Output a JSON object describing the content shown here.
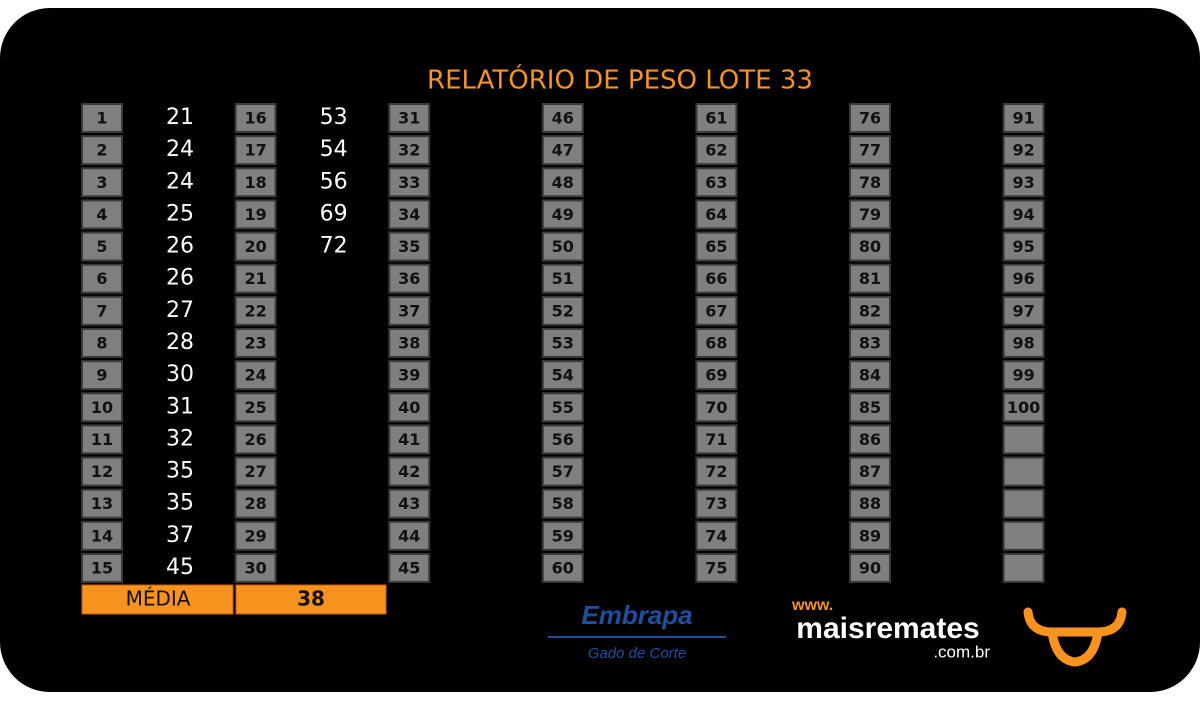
{
  "title": "RELATÓRIO DE PESO LOTE 33",
  "columns": [
    {
      "ids": [
        1,
        2,
        3,
        4,
        5,
        6,
        7,
        8,
        9,
        10,
        11,
        12,
        13,
        14,
        15
      ],
      "weights": [
        21,
        24,
        24,
        25,
        26,
        26,
        27,
        28,
        30,
        31,
        32,
        35,
        35,
        37,
        45
      ]
    },
    {
      "ids": [
        16,
        17,
        18,
        19,
        20,
        21,
        22,
        23,
        24,
        25,
        26,
        27,
        28,
        29,
        30
      ],
      "weights": [
        53,
        54,
        56,
        69,
        72
      ]
    },
    {
      "ids": [
        31,
        32,
        33,
        34,
        35,
        36,
        37,
        38,
        39,
        40,
        41,
        42,
        43,
        44,
        45
      ]
    },
    {
      "ids": [
        46,
        47,
        48,
        49,
        50,
        51,
        52,
        53,
        54,
        55,
        56,
        57,
        58,
        59,
        60
      ]
    },
    {
      "ids": [
        61,
        62,
        63,
        64,
        65,
        66,
        67,
        68,
        69,
        70,
        71,
        72,
        73,
        74,
        75
      ]
    },
    {
      "ids": [
        76,
        77,
        78,
        79,
        80,
        81,
        82,
        83,
        84,
        85,
        86,
        87,
        88,
        89,
        90
      ]
    },
    {
      "ids": [
        91,
        92,
        93,
        94,
        95,
        96,
        97,
        98,
        99,
        100
      ]
    }
  ],
  "average": {
    "label": "MÉDIA",
    "value": 38
  },
  "logos": {
    "embrapa": "Embrapa",
    "embrapa_sub": "Gado de Corte",
    "www": "www.",
    "site": "maisremates",
    "domain": ".com.br"
  }
}
